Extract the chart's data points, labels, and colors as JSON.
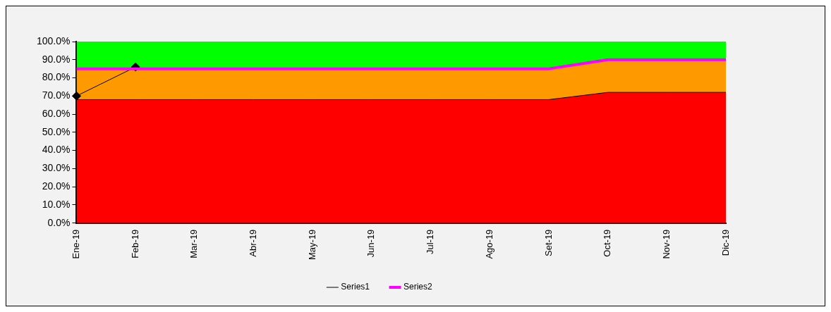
{
  "chart_data": {
    "type": "area",
    "stacked": true,
    "categories": [
      "Ene-19",
      "Feb-19",
      "Mar-19",
      "Abr-19",
      "May-19",
      "Jun-19",
      "Jul-19",
      "Ago-19",
      "Set-19",
      "Oct-19",
      "Nov-19",
      "Dic-19"
    ],
    "series": [
      {
        "color": "#ff0000",
        "values": [
          68,
          68,
          68,
          68,
          68,
          68,
          68,
          68,
          68,
          72,
          72,
          72
        ]
      },
      {
        "color": "#ff9900",
        "values": [
          17,
          17,
          17,
          17,
          17,
          17,
          17,
          17,
          17,
          18,
          18,
          18
        ]
      },
      {
        "color": "#00ff00",
        "values": [
          15,
          15,
          15,
          15,
          15,
          15,
          15,
          15,
          15,
          10,
          10,
          10
        ]
      },
      {
        "type": "line",
        "name": "Series1",
        "color": "#000000",
        "marker": "diamond",
        "values": [
          70,
          86,
          null,
          null,
          null,
          null,
          null,
          null,
          null,
          null,
          null,
          null
        ]
      },
      {
        "type": "line",
        "name": "Series2",
        "color": "#ff00ff",
        "marker": "none",
        "values": [
          85,
          85,
          85,
          85,
          85,
          85,
          85,
          85,
          85,
          90,
          90,
          90
        ]
      }
    ],
    "ylim": [
      0,
      100
    ],
    "yticks": [
      {
        "value": 0,
        "label": "0.0%"
      },
      {
        "value": 10,
        "label": "10.0%"
      },
      {
        "value": 20,
        "label": "20.0%"
      },
      {
        "value": 30,
        "label": "30.0%"
      },
      {
        "value": 40,
        "label": "40.0%"
      },
      {
        "value": 50,
        "label": "50.0%"
      },
      {
        "value": 60,
        "label": "60.0%"
      },
      {
        "value": 70,
        "label": "70.0%"
      },
      {
        "value": 80,
        "label": "80.0%"
      },
      {
        "value": 90,
        "label": "90.0%"
      },
      {
        "value": 100,
        "label": "100.0%"
      }
    ],
    "grid": false,
    "legend": "bottom"
  }
}
